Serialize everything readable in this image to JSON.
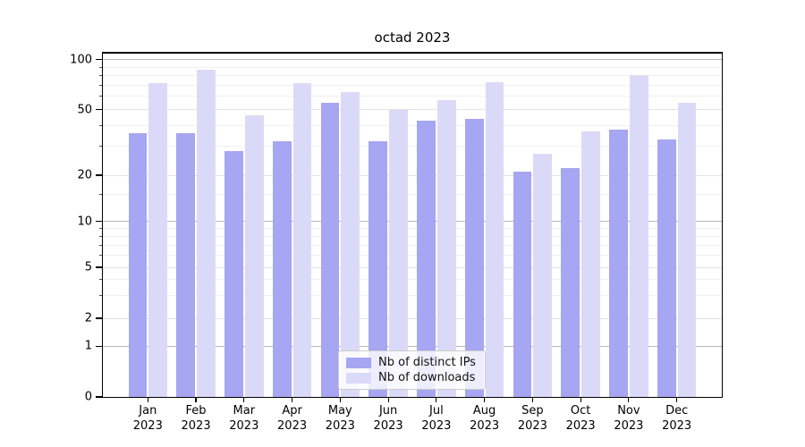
{
  "title": "octad 2023",
  "y_axis": {
    "ticks": [
      {
        "label": "100",
        "value": 100
      },
      {
        "label": "50",
        "value": 50
      },
      {
        "label": "20",
        "value": 20
      },
      {
        "label": "10",
        "value": 10
      },
      {
        "label": "5",
        "value": 5
      },
      {
        "label": "2",
        "value": 2
      },
      {
        "label": "1",
        "value": 1
      },
      {
        "label": "0",
        "value": 0
      }
    ]
  },
  "x_axis": {
    "year_label": "2023",
    "months": [
      "Jan",
      "Feb",
      "Mar",
      "Apr",
      "May",
      "Jun",
      "Jul",
      "Aug",
      "Sep",
      "Oct",
      "Nov",
      "Dec"
    ]
  },
  "legend": {
    "items": [
      {
        "label": "Nb of distinct IPs",
        "color": "#a6a6f2"
      },
      {
        "label": "Nb of downloads",
        "color": "#dadaf8"
      }
    ]
  },
  "chart_data": {
    "type": "bar",
    "title": "octad 2023",
    "categories": [
      "Jan 2023",
      "Feb 2023",
      "Mar 2023",
      "Apr 2023",
      "May 2023",
      "Jun 2023",
      "Jul 2023",
      "Aug 2023",
      "Sep 2023",
      "Oct 2023",
      "Nov 2023",
      "Dec 2023"
    ],
    "series": [
      {
        "name": "Nb of distinct IPs",
        "color": "#a6a6f2",
        "values": [
          36,
          36,
          28,
          32,
          55,
          32,
          43,
          44,
          21,
          22,
          38,
          33
        ]
      },
      {
        "name": "Nb of downloads",
        "color": "#dadaf8",
        "values": [
          72,
          87,
          46,
          72,
          64,
          50,
          57,
          73,
          27,
          37,
          81,
          55
        ]
      }
    ],
    "xlabel": "",
    "ylabel": "",
    "yscale": "symlog",
    "ylim": [
      0,
      104
    ],
    "y_ticks_major": [
      0,
      1,
      2,
      5,
      10,
      20,
      50,
      100
    ],
    "y_minor_gridlines": [
      3,
      4,
      6,
      7,
      8,
      9,
      15,
      30,
      40,
      60,
      70,
      80,
      90
    ],
    "grid": "horizontal",
    "legend_position": "lower center"
  }
}
